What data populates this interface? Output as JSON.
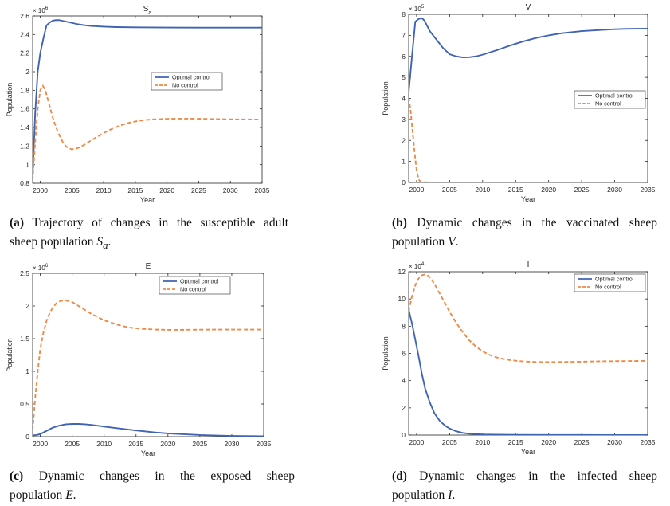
{
  "colors": {
    "optimal": "#4063b5",
    "nocontrol": "#ee8a47",
    "axis": "#262626"
  },
  "charts": [
    {
      "id": "a",
      "title": "S",
      "title_sub": "a",
      "ylabel": "Population",
      "xlabel": "Year",
      "exponent": "× 10",
      "exponent_power": "6",
      "xticks": [
        2000,
        2005,
        2010,
        2015,
        2020,
        2025,
        2030,
        2035
      ],
      "yticks": [
        0.8,
        1,
        1.2,
        1.4,
        1.6,
        1.8,
        2,
        2.2,
        2.4,
        2.6
      ],
      "xlim": [
        1998.8,
        2035
      ],
      "ylim": [
        0.8,
        2.6
      ],
      "legend": [
        "Optimal control",
        "No control"
      ],
      "legend_pos": "right-middle",
      "caption": {
        "label": "(a)",
        "line1": "Trajectory of changes in the susceptible adult",
        "line2": "sheep population ",
        "var": "S",
        "var_sub": "a",
        "end": "."
      }
    },
    {
      "id": "b",
      "title": "V",
      "title_sub": "",
      "ylabel": "Population",
      "xlabel": "Year",
      "exponent": "× 10",
      "exponent_power": "5",
      "xticks": [
        2000,
        2005,
        2010,
        2015,
        2020,
        2025,
        2030,
        2035
      ],
      "yticks": [
        0,
        1,
        2,
        3,
        4,
        5,
        6,
        7,
        8
      ],
      "xlim": [
        1998.8,
        2035
      ],
      "ylim": [
        0,
        8
      ],
      "legend": [
        "Optimal control",
        "No control"
      ],
      "legend_pos": "right-middle",
      "caption": {
        "label": "(b)",
        "line1": "Dynamic changes in the vaccinated sheep",
        "line2": "population ",
        "var": "V",
        "var_sub": "",
        "end": "."
      }
    },
    {
      "id": "c",
      "title": "E",
      "title_sub": "",
      "ylabel": "Population",
      "xlabel": "Year",
      "exponent": "× 10",
      "exponent_power": "6",
      "xticks": [
        2000,
        2005,
        2010,
        2015,
        2020,
        2025,
        2030,
        2035
      ],
      "yticks": [
        0,
        0.5,
        1,
        1.5,
        2,
        2.5
      ],
      "xlim": [
        1998.8,
        2035
      ],
      "ylim": [
        0,
        2.5
      ],
      "legend": [
        "Optimal control",
        "No control"
      ],
      "legend_pos": "top-right",
      "caption": {
        "label": "(c)",
        "line1": "Dynamic changes in the exposed sheep",
        "line2": "population ",
        "var": "E",
        "var_sub": "",
        "end": "."
      }
    },
    {
      "id": "d",
      "title": "I",
      "title_sub": "",
      "ylabel": "Population",
      "xlabel": "Year",
      "exponent": "× 10",
      "exponent_power": "4",
      "xticks": [
        2000,
        2005,
        2010,
        2015,
        2020,
        2025,
        2030,
        2035
      ],
      "yticks": [
        0,
        2,
        4,
        6,
        8,
        10,
        12
      ],
      "xlim": [
        1998.8,
        2035
      ],
      "ylim": [
        0,
        12
      ],
      "legend": [
        "Optimal control",
        "No control"
      ],
      "legend_pos": "top-right",
      "caption": {
        "label": "(d)",
        "line1": "Dynamic changes in the infected sheep",
        "line2": "population ",
        "var": "I",
        "var_sub": "",
        "end": "."
      }
    }
  ],
  "chart_data": [
    {
      "type": "line",
      "title": "Sa",
      "xlabel": "Year",
      "ylabel": "Population",
      "y_scale_factor": 1000000,
      "xlim": [
        1998.8,
        2035
      ],
      "ylim": [
        0.8,
        2.6
      ],
      "grid": false,
      "legend_placement": "right-middle",
      "series": [
        {
          "name": "Optimal control",
          "style": "solid",
          "x": [
            1998.8,
            1999.2,
            1999.6,
            2000,
            2000.5,
            2001,
            2001.5,
            2002,
            2002.5,
            2003,
            2004,
            2005,
            2006,
            2007,
            2008,
            2010,
            2012,
            2015,
            2020,
            2025,
            2030,
            2035
          ],
          "y": [
            0.88,
            1.55,
            2.0,
            2.2,
            2.36,
            2.5,
            2.53,
            2.55,
            2.555,
            2.555,
            2.54,
            2.525,
            2.51,
            2.5,
            2.492,
            2.485,
            2.48,
            2.477,
            2.475,
            2.474,
            2.474,
            2.474
          ]
        },
        {
          "name": "No control",
          "style": "dashed",
          "x": [
            1998.8,
            1999.2,
            1999.6,
            2000,
            2000.4,
            2000.8,
            2001.2,
            2001.6,
            2002,
            2002.5,
            2003,
            2003.5,
            2004,
            2004.5,
            2005,
            2005.5,
            2006,
            2007,
            2008,
            2009,
            2010,
            2011,
            2012,
            2013,
            2014,
            2015,
            2016,
            2017,
            2018,
            2020,
            2022,
            2025,
            2028,
            2030,
            2032,
            2035
          ],
          "y": [
            0.83,
            1.25,
            1.6,
            1.8,
            1.85,
            1.8,
            1.7,
            1.6,
            1.5,
            1.4,
            1.32,
            1.25,
            1.2,
            1.175,
            1.165,
            1.17,
            1.18,
            1.215,
            1.26,
            1.3,
            1.34,
            1.375,
            1.405,
            1.43,
            1.45,
            1.465,
            1.475,
            1.483,
            1.488,
            1.493,
            1.495,
            1.494,
            1.49,
            1.488,
            1.487,
            1.486
          ]
        }
      ]
    },
    {
      "type": "line",
      "title": "V",
      "xlabel": "Year",
      "ylabel": "Population",
      "y_scale_factor": 100000,
      "xlim": [
        1998.8,
        2035
      ],
      "ylim": [
        0,
        8
      ],
      "grid": false,
      "legend_placement": "right-middle",
      "series": [
        {
          "name": "Optimal control",
          "style": "solid",
          "x": [
            1998.8,
            1999.3,
            1999.8,
            2000.3,
            2000.8,
            2001.2,
            2001.6,
            2002,
            2003,
            2004,
            2005,
            2006,
            2007,
            2008,
            2009,
            2010,
            2012,
            2014,
            2016,
            2018,
            2020,
            2022,
            2025,
            2028,
            2030,
            2032,
            2035
          ],
          "y": [
            4.3,
            6.0,
            7.65,
            7.78,
            7.82,
            7.7,
            7.45,
            7.2,
            6.8,
            6.4,
            6.1,
            6.0,
            5.95,
            5.96,
            6.0,
            6.08,
            6.28,
            6.5,
            6.7,
            6.87,
            7.0,
            7.1,
            7.2,
            7.26,
            7.29,
            7.31,
            7.32
          ]
        },
        {
          "name": "No control",
          "style": "dashed",
          "x": [
            1998.8,
            1999.1,
            1999.4,
            1999.7,
            2000,
            2000.3,
            2000.6,
            2002,
            2010,
            2020,
            2030,
            2035
          ],
          "y": [
            4.05,
            3.4,
            2.4,
            1.4,
            0.6,
            0.15,
            0.02,
            0,
            0,
            0,
            0,
            0
          ]
        }
      ]
    },
    {
      "type": "line",
      "title": "E",
      "xlabel": "Year",
      "ylabel": "Population",
      "y_scale_factor": 1000000,
      "xlim": [
        1998.8,
        2035
      ],
      "ylim": [
        0,
        2.5
      ],
      "grid": false,
      "legend_placement": "top-right",
      "series": [
        {
          "name": "Optimal control",
          "style": "solid",
          "x": [
            1998.8,
            1999.5,
            2000,
            2001,
            2002,
            2003,
            2004,
            2005,
            2006,
            2007,
            2008,
            2010,
            2012,
            2015,
            2018,
            2020,
            2025,
            2030,
            2035
          ],
          "y": [
            0.02,
            0.025,
            0.04,
            0.09,
            0.14,
            0.17,
            0.19,
            0.195,
            0.195,
            0.19,
            0.18,
            0.155,
            0.13,
            0.095,
            0.065,
            0.05,
            0.025,
            0.012,
            0.006
          ]
        },
        {
          "name": "No control",
          "style": "dashed",
          "x": [
            1998.8,
            1999.2,
            1999.6,
            2000,
            2000.5,
            2001,
            2001.5,
            2002,
            2002.5,
            2003,
            2003.5,
            2004,
            2005,
            2006,
            2007,
            2008,
            2009,
            2010,
            2011,
            2012,
            2013,
            2014,
            2015,
            2016,
            2018,
            2020,
            2022,
            2025,
            2030,
            2035
          ],
          "y": [
            0.1,
            0.6,
            1.0,
            1.35,
            1.6,
            1.78,
            1.9,
            1.98,
            2.04,
            2.07,
            2.085,
            2.085,
            2.06,
            2.0,
            1.94,
            1.88,
            1.83,
            1.78,
            1.75,
            1.715,
            1.69,
            1.67,
            1.66,
            1.65,
            1.64,
            1.635,
            1.635,
            1.638,
            1.64,
            1.64
          ]
        }
      ]
    },
    {
      "type": "line",
      "title": "I",
      "xlabel": "Year",
      "ylabel": "Population",
      "y_scale_factor": 10000,
      "xlim": [
        1998.8,
        2035
      ],
      "ylim": [
        0,
        12
      ],
      "grid": false,
      "legend_placement": "top-right",
      "series": [
        {
          "name": "Optimal control",
          "style": "solid",
          "x": [
            1998.8,
            1999.3,
            1999.8,
            2000.3,
            2000.8,
            2001.3,
            2002,
            2002.7,
            2003.5,
            2004.3,
            2005,
            2006,
            2007,
            2008,
            2010,
            2012,
            2015,
            2020,
            2025,
            2030,
            2035
          ],
          "y": [
            9.2,
            8.2,
            7.0,
            5.8,
            4.5,
            3.4,
            2.4,
            1.6,
            1.05,
            0.7,
            0.48,
            0.28,
            0.16,
            0.1,
            0.05,
            0.03,
            0.015,
            0.01,
            0.008,
            0.006,
            0.005
          ]
        },
        {
          "name": "No control",
          "style": "dashed",
          "x": [
            1998.8,
            1999.3,
            1999.8,
            2000.3,
            2000.8,
            2001.3,
            2001.8,
            2002.3,
            2003,
            2004,
            2005,
            2006,
            2007,
            2008,
            2009,
            2010,
            2011,
            2012,
            2013,
            2014,
            2015,
            2016,
            2017,
            2018,
            2020,
            2022,
            2025,
            2028,
            2030,
            2035
          ],
          "y": [
            9.1,
            10.2,
            11.0,
            11.5,
            11.75,
            11.8,
            11.7,
            11.4,
            10.85,
            9.95,
            9.05,
            8.25,
            7.55,
            6.95,
            6.5,
            6.15,
            5.9,
            5.72,
            5.6,
            5.52,
            5.46,
            5.42,
            5.39,
            5.37,
            5.36,
            5.37,
            5.39,
            5.42,
            5.43,
            5.45
          ]
        }
      ]
    }
  ]
}
